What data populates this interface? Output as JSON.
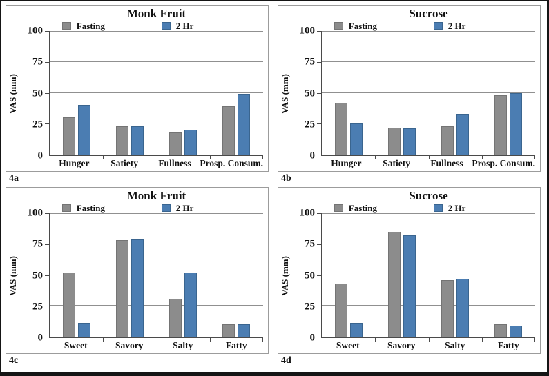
{
  "figure": {
    "y_tick_labels": [
      "100",
      "75",
      "50",
      "25",
      "0"
    ],
    "accent_colors": {
      "fasting_gray": "#8C8C8C",
      "two_hr_blue": "#4B7DB2"
    }
  },
  "chart_data": [
    {
      "id": "4a",
      "type": "bar",
      "title": "Monk Fruit",
      "ylabel": "VAS (mm)",
      "ylim": [
        0,
        100
      ],
      "yticks": [
        0,
        25,
        50,
        75,
        100
      ],
      "grid": true,
      "legend_position": "top",
      "categories": [
        "Hunger",
        "Satiety",
        "Fullness",
        "Prosp. Consum."
      ],
      "series": [
        {
          "name": "Fasting",
          "color": "#8C8C8C",
          "border_color": "#747474",
          "values": [
            30,
            23,
            18,
            39
          ]
        },
        {
          "name": "2 Hr",
          "color": "#4B7DB2",
          "border_color": "#3A658F",
          "values": [
            40,
            23,
            20,
            49
          ]
        }
      ]
    },
    {
      "id": "4b",
      "type": "bar",
      "title": "Sucrose",
      "ylabel": "VAS (mm)",
      "ylim": [
        0,
        100
      ],
      "yticks": [
        0,
        25,
        50,
        75,
        100
      ],
      "grid": true,
      "legend_position": "top",
      "categories": [
        "Hunger",
        "Satiety",
        "Fullness",
        "Prosp. Consum."
      ],
      "series": [
        {
          "name": "Fasting",
          "color": "#8C8C8C",
          "border_color": "#747474",
          "values": [
            42,
            22,
            23,
            48
          ]
        },
        {
          "name": "2 Hr",
          "color": "#4B7DB2",
          "border_color": "#3A658F",
          "values": [
            25,
            21,
            33,
            50
          ]
        }
      ]
    },
    {
      "id": "4c",
      "type": "bar",
      "title": "Monk Fruit",
      "ylabel": "VAS (mm)",
      "ylim": [
        0,
        100
      ],
      "yticks": [
        0,
        25,
        50,
        75,
        100
      ],
      "grid": true,
      "legend_position": "top",
      "categories": [
        "Sweet",
        "Savory",
        "Salty",
        "Fatty"
      ],
      "series": [
        {
          "name": "Fasting",
          "color": "#8C8C8C",
          "border_color": "#747474",
          "values": [
            52,
            78,
            31,
            10
          ]
        },
        {
          "name": "2 Hr",
          "color": "#4B7DB2",
          "border_color": "#3A658F",
          "values": [
            11,
            79,
            52,
            10
          ]
        }
      ]
    },
    {
      "id": "4d",
      "type": "bar",
      "title": "Sucrose",
      "ylabel": "VAS (mm)",
      "ylim": [
        0,
        100
      ],
      "yticks": [
        0,
        25,
        50,
        75,
        100
      ],
      "grid": true,
      "legend_position": "top",
      "categories": [
        "Sweet",
        "Savory",
        "Salty",
        "Fatty"
      ],
      "series": [
        {
          "name": "Fasting",
          "color": "#8C8C8C",
          "border_color": "#747474",
          "values": [
            43,
            85,
            46,
            10
          ]
        },
        {
          "name": "2 Hr",
          "color": "#4B7DB2",
          "border_color": "#3A658F",
          "values": [
            11,
            82,
            47,
            9
          ]
        }
      ]
    }
  ]
}
